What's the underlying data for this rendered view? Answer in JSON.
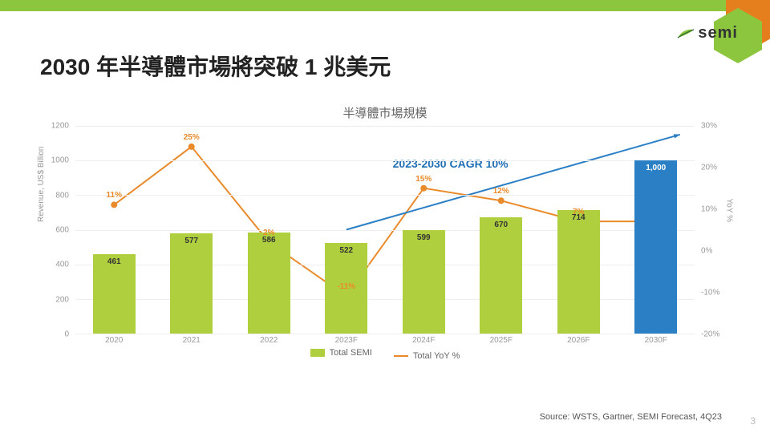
{
  "header": {
    "bar_color": "#8cc63f",
    "logo_text": "semi",
    "logo_color_dark": "#2f6b2f",
    "logo_color_light": "#8cc63f",
    "hex_outer": "#e57f1d",
    "hex_inner": "#8cc63f"
  },
  "title": "2030 年半導體市場將突破 1 兆美元",
  "chart": {
    "title": "半導體市場規模",
    "type": "bar+line",
    "categories": [
      "2020",
      "2021",
      "2022",
      "2023F",
      "2024F",
      "2025F",
      "2026F",
      "2030F"
    ],
    "bars": {
      "values": [
        461,
        577,
        586,
        522,
        599,
        670,
        714,
        1000
      ],
      "value_labels": [
        "461",
        "577",
        "586",
        "522",
        "599",
        "670",
        "714",
        "1,000"
      ],
      "colors": [
        "#b0cf3e",
        "#b0cf3e",
        "#b0cf3e",
        "#b0cf3e",
        "#b0cf3e",
        "#b0cf3e",
        "#b0cf3e",
        "#2b7fc4"
      ],
      "bar_width_frac": 0.55
    },
    "line": {
      "values_pct": [
        11,
        25,
        2,
        -11,
        15,
        12,
        7,
        7
      ],
      "labels": [
        "11%",
        "25%",
        "2%",
        "-11%",
        "15%",
        "12%",
        "7%",
        ""
      ],
      "color": "#e98a2b",
      "stroke_width": 2,
      "marker": "circle",
      "marker_size": 4
    },
    "y_left": {
      "label": "Revenue, US$ Billion",
      "min": 0,
      "max": 1200,
      "step": 200
    },
    "y_right": {
      "label": "YoY %",
      "min": -20,
      "max": 30,
      "step": 10
    },
    "cagr": {
      "text": "2023-2030 CAGR 10%",
      "color": "#1f6fb5",
      "arrow_color": "#2b7fc4"
    },
    "legend": {
      "bar_label": "Total SEMI",
      "bar_color": "#b0cf3e",
      "line_label": "Total YoY %",
      "line_color": "#e98a2b"
    },
    "grid_color": "#eeeeee",
    "axis_color": "#cccccc",
    "background": "#ffffff"
  },
  "footer": {
    "source": "Source: WSTS, Gartner, SEMI Forecast, 4Q23",
    "page": "3"
  }
}
